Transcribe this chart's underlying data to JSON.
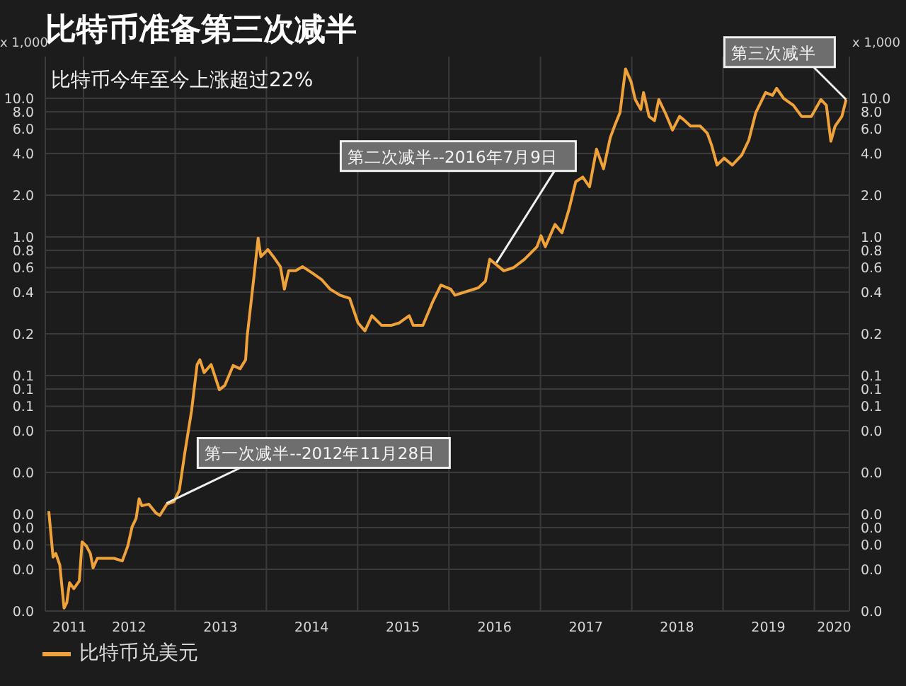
{
  "chart_data": {
    "type": "line",
    "title": "比特币准备第三次减半",
    "subtitle": "比特币今年至今上涨超过22%",
    "ylabel": "x 1,000",
    "y2label": "x 1,000",
    "x": [
      "2011-08-15",
      "2011-09-01",
      "2011-09-12",
      "2011-09-28",
      "2011-10-15",
      "2011-10-26",
      "2011-11-06",
      "2011-11-23",
      "2011-12-15",
      "2011-12-26",
      "2012-01-12",
      "2012-01-28",
      "2012-02-08",
      "2012-02-25",
      "2012-03-13",
      "2012-05-02",
      "2012-06-04",
      "2012-06-26",
      "2012-07-13",
      "2012-07-29",
      "2012-08-10",
      "2012-08-21",
      "2012-09-18",
      "2012-10-16",
      "2012-11-01",
      "2012-11-29",
      "2012-12-27",
      "2013-01-18",
      "2013-02-09",
      "2013-03-08",
      "2013-03-30",
      "2013-04-10",
      "2013-04-27",
      "2013-05-25",
      "2013-06-27",
      "2013-07-19",
      "2013-08-21",
      "2013-09-18",
      "2013-10-10",
      "2013-10-16",
      "2013-11-13",
      "2013-11-29",
      "2013-12-10",
      "2014-01-07",
      "2014-01-29",
      "2014-02-26",
      "2014-03-14",
      "2014-03-31",
      "2014-04-28",
      "2014-05-26",
      "2014-07-03",
      "2014-08-11",
      "2014-09-13",
      "2014-10-22",
      "2014-11-30",
      "2015-01-02",
      "2015-01-30",
      "2015-02-27",
      "2015-04-07",
      "2015-05-15",
      "2015-06-17",
      "2015-07-26",
      "2015-08-11",
      "2015-09-19",
      "2015-10-28",
      "2015-11-30",
      "2016-01-08",
      "2016-01-25",
      "2016-03-04",
      "2016-04-28",
      "2016-05-26",
      "2016-06-12",
      "2016-07-04",
      "2016-08-07",
      "2016-09-15",
      "2016-10-29",
      "2016-12-18",
      "2017-01-03",
      "2017-01-20",
      "2017-02-28",
      "2017-03-28",
      "2017-04-24",
      "2017-05-22",
      "2017-06-19",
      "2017-07-16",
      "2017-08-13",
      "2017-09-10",
      "2017-10-07",
      "2017-10-24",
      "2017-11-15",
      "2017-12-07",
      "2017-12-29",
      "2018-01-15",
      "2018-02-06",
      "2018-02-17",
      "2018-03-11",
      "2018-04-02",
      "2018-04-19",
      "2018-05-17",
      "2018-06-13",
      "2018-07-11",
      "2018-07-28",
      "2018-08-24",
      "2018-10-02",
      "2018-10-30",
      "2018-11-16",
      "2018-12-08",
      "2019-01-05",
      "2019-02-07",
      "2019-03-17",
      "2019-04-14",
      "2019-05-12",
      "2019-06-20",
      "2019-07-18",
      "2019-08-03",
      "2019-08-31",
      "2019-10-09",
      "2019-11-11",
      "2019-12-20",
      "2020-01-27",
      "2020-02-18",
      "2020-03-07",
      "2020-03-24",
      "2020-04-20",
      "2020-05-07"
    ],
    "series": [
      {
        "name": "比特币兑美元",
        "color": "#f0a23a",
        "values": [
          0.0105,
          0.0049,
          0.0052,
          0.0043,
          0.0021,
          0.0023,
          0.0032,
          0.0029,
          0.0033,
          0.0063,
          0.0059,
          0.0052,
          0.0041,
          0.0048,
          0.0048,
          0.0048,
          0.0046,
          0.0059,
          0.0081,
          0.0093,
          0.0129,
          0.0115,
          0.0118,
          0.0102,
          0.0098,
          0.0118,
          0.0123,
          0.0149,
          0.0278,
          0.056,
          0.12,
          0.13,
          0.105,
          0.12,
          0.079,
          0.085,
          0.118,
          0.112,
          0.13,
          0.19,
          0.53,
          0.98,
          0.72,
          0.81,
          0.72,
          0.61,
          0.42,
          0.57,
          0.57,
          0.61,
          0.55,
          0.49,
          0.42,
          0.38,
          0.36,
          0.24,
          0.21,
          0.27,
          0.23,
          0.23,
          0.24,
          0.27,
          0.23,
          0.23,
          0.34,
          0.45,
          0.42,
          0.38,
          0.4,
          0.43,
          0.48,
          0.69,
          0.64,
          0.57,
          0.6,
          0.69,
          0.85,
          1.02,
          0.85,
          1.23,
          1.07,
          1.56,
          2.5,
          2.7,
          2.3,
          4.3,
          3.1,
          5.2,
          6.3,
          7.9,
          16.3,
          13.2,
          9.8,
          8.3,
          11.0,
          7.4,
          6.9,
          9.8,
          7.7,
          5.9,
          7.4,
          7.0,
          6.3,
          6.3,
          5.6,
          4.6,
          3.3,
          3.7,
          3.3,
          3.9,
          5.0,
          7.9,
          11.0,
          10.5,
          11.8,
          10.0,
          8.9,
          7.4,
          7.4,
          9.8,
          8.9,
          4.9,
          6.3,
          7.4,
          9.8
        ]
      }
    ],
    "log": true,
    "grid": true,
    "legend": "bottom left",
    "xlim": [
      "2011-08-01",
      "2020-05-20"
    ],
    "xticks": [
      {
        "value": "2011-11-06",
        "label": "2011"
      },
      {
        "value": "2012-01-01",
        "label": null
      },
      {
        "value": "2012-07-01",
        "label": "2012"
      },
      {
        "value": "2013-01-01",
        "label": null
      },
      {
        "value": "2013-07-01",
        "label": "2013"
      },
      {
        "value": "2014-01-01",
        "label": null
      },
      {
        "value": "2014-07-01",
        "label": "2014"
      },
      {
        "value": "2015-01-01",
        "label": null
      },
      {
        "value": "2015-07-01",
        "label": "2015"
      },
      {
        "value": "2016-01-01",
        "label": null
      },
      {
        "value": "2016-07-01",
        "label": "2016"
      },
      {
        "value": "2017-01-01",
        "label": null
      },
      {
        "value": "2017-07-01",
        "label": "2017"
      },
      {
        "value": "2018-01-01",
        "label": null
      },
      {
        "value": "2018-07-01",
        "label": "2018"
      },
      {
        "value": "2019-01-01",
        "label": null
      },
      {
        "value": "2019-07-01",
        "label": "2019"
      },
      {
        "value": "2020-01-01",
        "label": null
      },
      {
        "value": "2020-03-20",
        "label": "2020"
      }
    ],
    "ylim": [
      0.002,
      20
    ],
    "yticks": [
      {
        "value": 10,
        "label": "10.0"
      },
      {
        "value": 8,
        "label": "8.0"
      },
      {
        "value": 6,
        "label": "6.0"
      },
      {
        "value": 4,
        "label": "4.0"
      },
      {
        "value": 2,
        "label": "2.0"
      },
      {
        "value": 1,
        "label": "1.0"
      },
      {
        "value": 0.8,
        "label": "0.8"
      },
      {
        "value": 0.6,
        "label": "0.6"
      },
      {
        "value": 0.4,
        "label": "0.4"
      },
      {
        "value": 0.2,
        "label": "0.2"
      },
      {
        "value": 0.1,
        "label": "0.1"
      },
      {
        "value": 0.08,
        "label": "0.1"
      },
      {
        "value": 0.06,
        "label": "0.1"
      },
      {
        "value": 0.04,
        "label": "0.0"
      },
      {
        "value": 0.02,
        "label": "0.0"
      },
      {
        "value": 0.01,
        "label": "0.0"
      },
      {
        "value": 0.008,
        "label": "0.0"
      },
      {
        "value": 0.006,
        "label": "0.0"
      },
      {
        "value": 0.004,
        "label": "0.0"
      },
      {
        "value": 0.002,
        "label": "0.0"
      }
    ],
    "annotations": [
      {
        "text": "第一次减半--2012年11月28日",
        "x": "2012-11-28",
        "y": 0.012
      },
      {
        "text": "第二次减半--2016年7月9日",
        "x": "2016-07-09",
        "y": 0.65
      },
      {
        "text": "第三次减半",
        "x": "2020-05-07",
        "y": 9.8
      }
    ]
  }
}
